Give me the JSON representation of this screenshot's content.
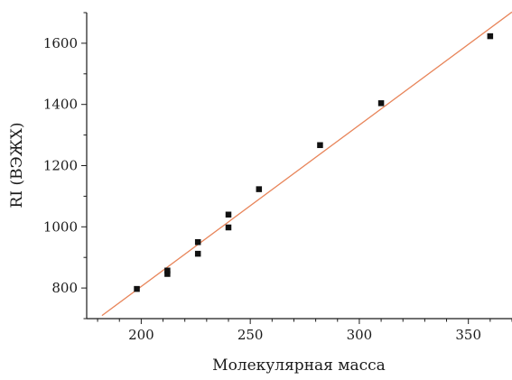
{
  "chart_data": {
    "type": "scatter",
    "title": "",
    "xlabel": "Молекулярная масса",
    "ylabel": "RI (ВЭЖХ)",
    "xlim": [
      175,
      370
    ],
    "ylim": [
      700,
      1700
    ],
    "x_ticks": [
      200,
      250,
      300,
      350
    ],
    "y_ticks": [
      800,
      1000,
      1200,
      1400,
      1600
    ],
    "x_minor_step": 10,
    "y_minor_step": 100,
    "grid": false,
    "legend": "none",
    "points": [
      {
        "x": 198,
        "y": 797
      },
      {
        "x": 212,
        "y": 846
      },
      {
        "x": 212,
        "y": 857
      },
      {
        "x": 226,
        "y": 912
      },
      {
        "x": 226,
        "y": 950
      },
      {
        "x": 240,
        "y": 998
      },
      {
        "x": 240,
        "y": 1040
      },
      {
        "x": 254,
        "y": 1123
      },
      {
        "x": 282,
        "y": 1267
      },
      {
        "x": 310,
        "y": 1404
      },
      {
        "x": 360,
        "y": 1623
      }
    ],
    "fit_line": {
      "x_start": 182,
      "y_start": 710,
      "x_end": 370,
      "y_end": 1702
    },
    "colors": {
      "points": "#111111",
      "fit_line": "#e8855a",
      "axes": "#1a1a1a"
    }
  }
}
